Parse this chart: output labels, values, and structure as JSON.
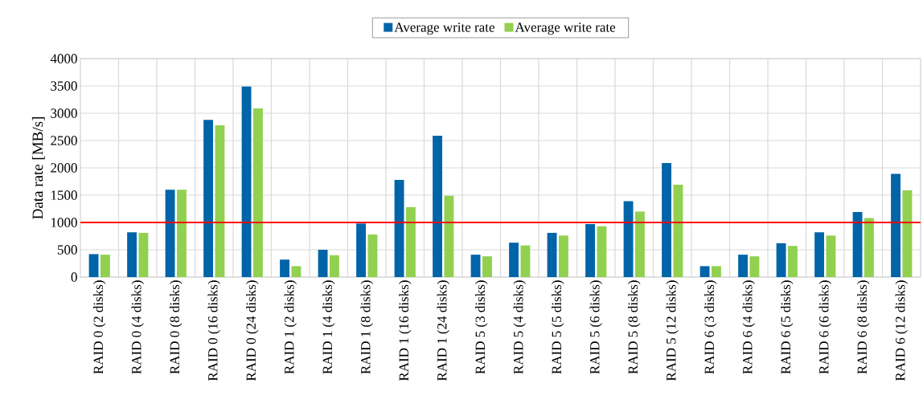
{
  "chart_data": {
    "type": "bar",
    "ylabel": "Data rate [MB/s]",
    "categories": [
      "RAID 0 (2 disks)",
      "RAID 0 (4 disks)",
      "RAID 0 (8 disks)",
      "RAID 0 (16 disks)",
      "RAID 0 (24 disks)",
      "RAID 1 (2 disks)",
      "RAID 1 (4 disks)",
      "RAID 1 (8 disks)",
      "RAID 1 (16 disks)",
      "RAID 1 (24 disks)",
      "RAID 5 (3 disks)",
      "RAID 5 (4 disks)",
      "RAID 5 (5 disks)",
      "RAID 5 (6 disks)",
      "RAID 5 (8 disks)",
      "RAID 5 (12 disks)",
      "RAID 6 (3 disks)",
      "RAID 6 (4 disks)",
      "RAID 6 (5 disks)",
      "RAID 6 (6 disks)",
      "RAID 6 (8 disks)",
      "RAID 6 (12 disks)"
    ],
    "series": [
      {
        "name": "Average write rate",
        "color": "#0064a8",
        "values": [
          420,
          820,
          1600,
          2880,
          3490,
          320,
          500,
          980,
          1780,
          2590,
          410,
          630,
          810,
          970,
          1390,
          2090,
          200,
          410,
          620,
          820,
          1190,
          1890
        ]
      },
      {
        "name": "Average write rate",
        "color": "#92d050",
        "values": [
          410,
          810,
          1600,
          2780,
          3090,
          200,
          400,
          780,
          1280,
          1490,
          380,
          580,
          760,
          930,
          1200,
          1690,
          200,
          380,
          570,
          760,
          1080,
          1590
        ]
      }
    ],
    "ylim": [
      0,
      4000
    ],
    "yticks": [
      0,
      500,
      1000,
      1500,
      2000,
      2500,
      3000,
      3500,
      4000
    ],
    "grid": true,
    "legend": "top",
    "ref_lines": [
      {
        "axis": "y",
        "value": 1000,
        "color": "#ff0000"
      }
    ]
  }
}
